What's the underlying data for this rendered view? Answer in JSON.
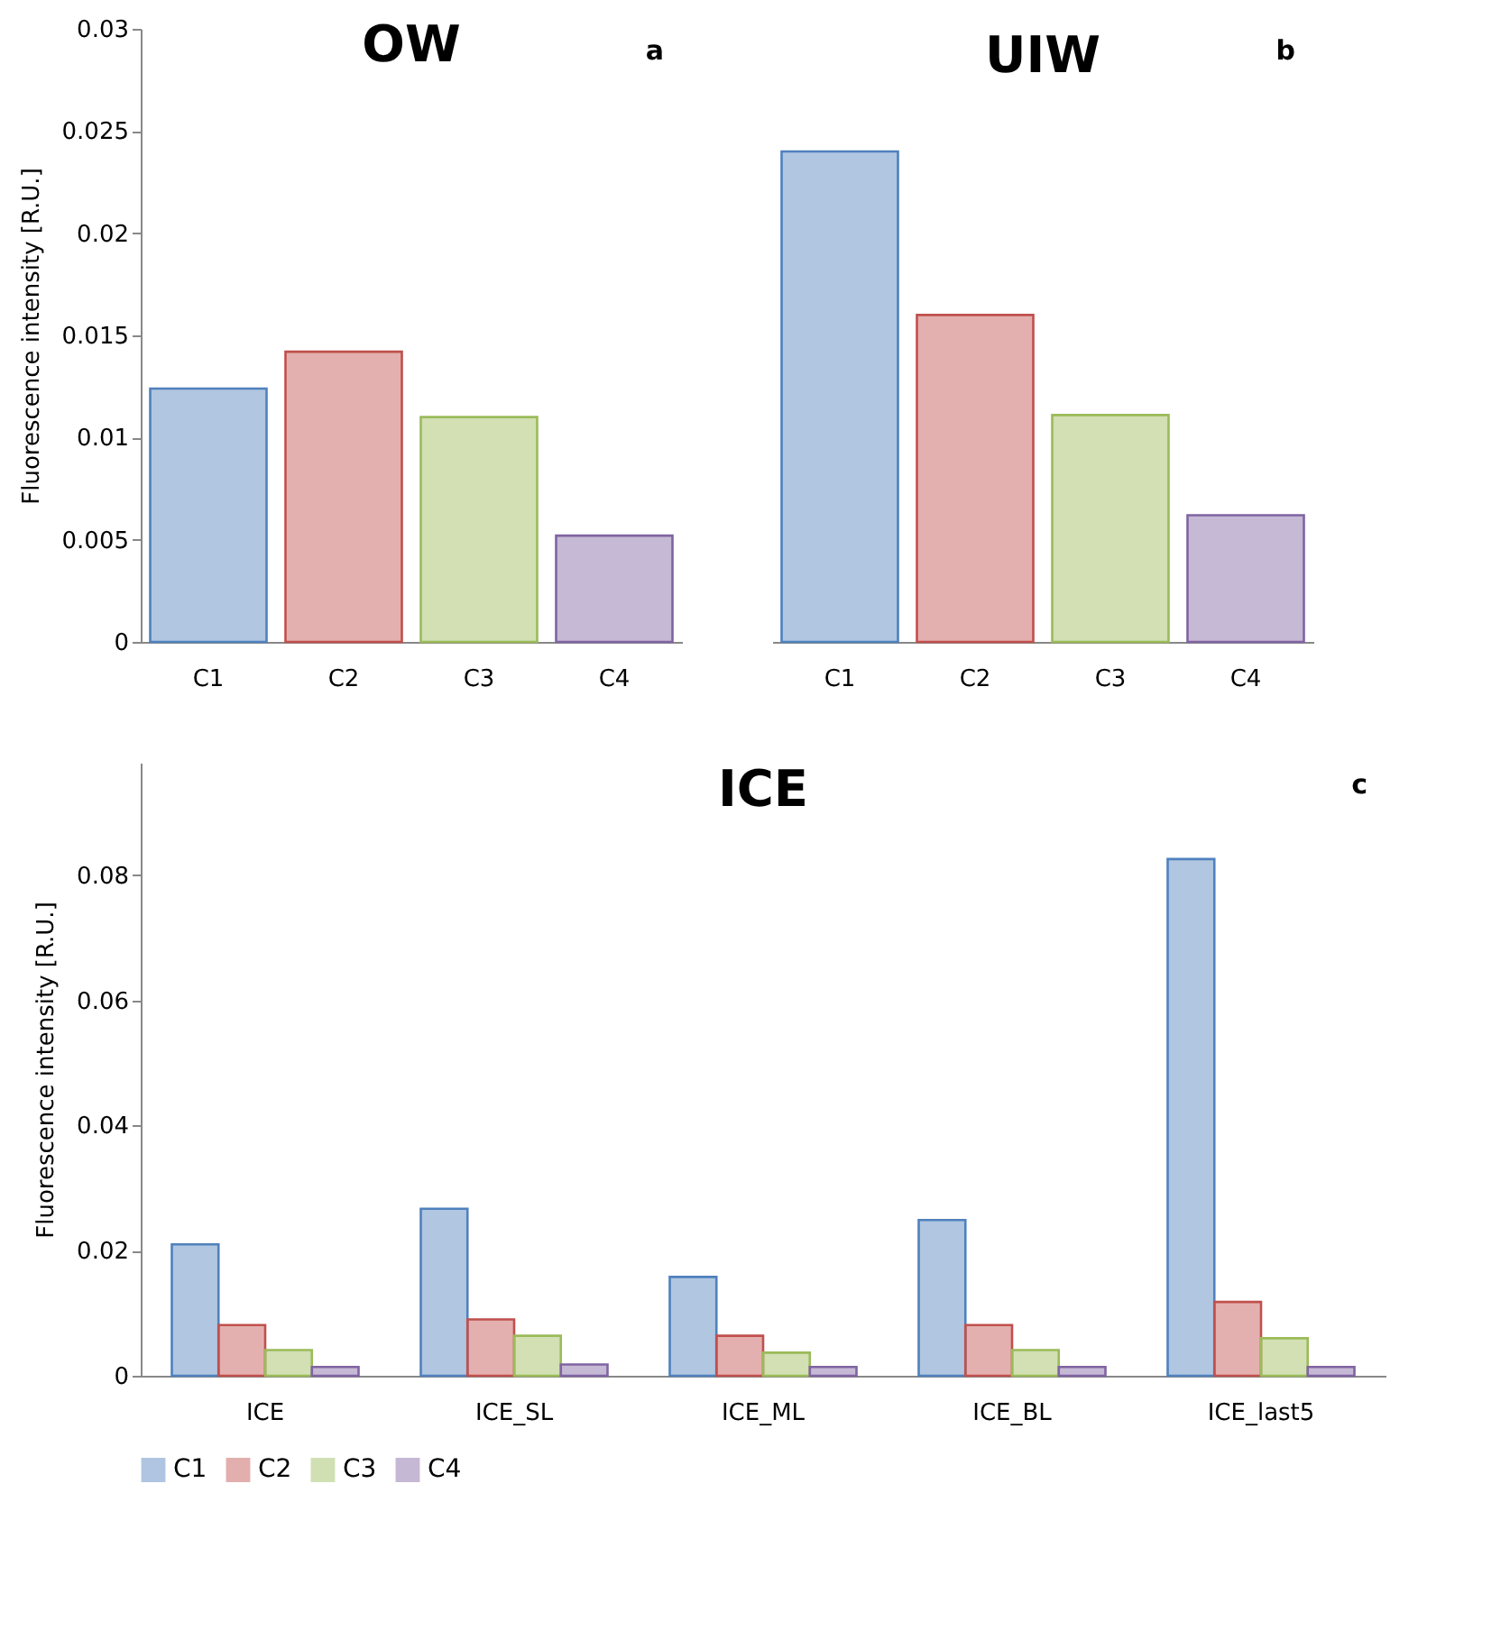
{
  "chart_data": [
    {
      "type": "bar",
      "title": "OW",
      "ylabel": "Fluorescence intensity [R.U.]",
      "annotations": [
        "a"
      ],
      "categories": [
        "C1",
        "C2",
        "C3",
        "C4"
      ],
      "values": [
        0.0124,
        0.0142,
        0.011,
        0.0052
      ],
      "colors": [
        "#4f81bd",
        "#c0504d",
        "#9bbb59",
        "#8064a2"
      ],
      "ylim": [
        0,
        0.03
      ],
      "yticks": [
        0,
        0.005,
        0.01,
        0.015,
        0.02,
        0.025,
        0.03
      ],
      "legend": false
    },
    {
      "type": "bar",
      "title": "UIW",
      "annotations": [
        "b"
      ],
      "categories": [
        "C1",
        "C2",
        "C3",
        "C4"
      ],
      "values": [
        0.024,
        0.016,
        0.0111,
        0.0062
      ],
      "colors": [
        "#4f81bd",
        "#c0504d",
        "#9bbb59",
        "#8064a2"
      ],
      "ylim": [
        0,
        0.03
      ],
      "yticks": [
        0,
        0.005,
        0.01,
        0.015,
        0.02,
        0.025,
        0.03
      ],
      "tick_labels": "x",
      "legend": false
    },
    {
      "type": "bar",
      "title": "ICE",
      "ylabel": "Fluorescence intensity [R.U.]",
      "annotations": [
        "c"
      ],
      "categories": [
        "ICE",
        "ICE_SL",
        "ICE_ML",
        "ICE_BL",
        "ICE_last5"
      ],
      "ylim": [
        0,
        0.098
      ],
      "yticks": [
        0,
        0.02,
        0.04,
        0.06,
        0.08
      ],
      "legend": "bottom",
      "series": [
        {
          "name": "C1",
          "color": "#4f81bd",
          "values": [
            0.021,
            0.0267,
            0.0158,
            0.0249,
            0.0826
          ]
        },
        {
          "name": "C2",
          "color": "#c0504d",
          "values": [
            0.0081,
            0.009,
            0.0064,
            0.0081,
            0.0118
          ]
        },
        {
          "name": "C3",
          "color": "#9bbb59",
          "values": [
            0.0041,
            0.0064,
            0.0037,
            0.0041,
            0.006
          ]
        },
        {
          "name": "C4",
          "color": "#8064a2",
          "values": [
            0.0014,
            0.0018,
            0.0014,
            0.0014,
            0.0014
          ]
        }
      ]
    }
  ]
}
